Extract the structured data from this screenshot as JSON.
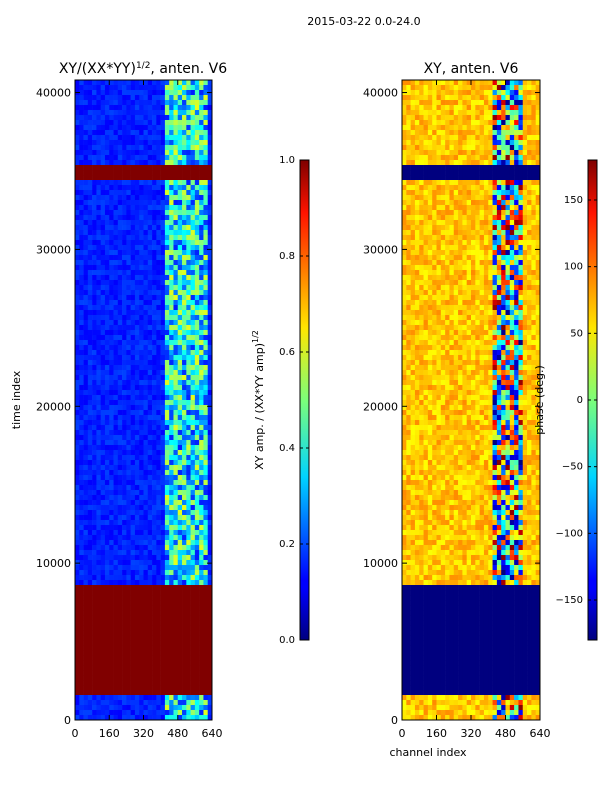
{
  "chart_data": {
    "type": "heatmap",
    "suptitle": "2015-03-22 0.0-24.0",
    "panels": [
      {
        "id": "amp",
        "title": "XY/(XX*YY)^1/2, anten. V6",
        "title_main": "XY/(XX*YY)",
        "title_sup": "1/2",
        "title_tail": ", anten. V6",
        "xlabel": "",
        "ylabel": "time index",
        "xlim": [
          0,
          640
        ],
        "ylim": [
          0,
          40800
        ],
        "xticks": [
          0,
          160,
          320,
          480,
          640
        ],
        "yticks": [
          0,
          10000,
          20000,
          30000,
          40000
        ],
        "colorbar": {
          "label": "XY amp. / (XX*YY amp)^1/2",
          "label_main": "XY amp. / (XX*YY amp)",
          "label_sup": "1/2",
          "vmin": 0.0,
          "vmax": 1.0,
          "ticks": [
            "0.0",
            "0.2",
            "0.4",
            "0.6",
            "0.8",
            "1.0"
          ]
        },
        "flagged_blocks": [
          {
            "y0": 1500,
            "y1": 8500,
            "color": "#800000"
          },
          {
            "y0": 34300,
            "y1": 35500,
            "color": "#800000"
          }
        ]
      },
      {
        "id": "phase",
        "title": "XY, anten. V6",
        "xlabel": "channel index",
        "ylabel": "",
        "xlim": [
          0,
          640
        ],
        "ylim": [
          0,
          40800
        ],
        "xticks": [
          0,
          160,
          320,
          480,
          640
        ],
        "yticks": [
          0,
          10000,
          20000,
          30000,
          40000
        ],
        "colorbar": {
          "label": "phase (deg.)",
          "vmin": -180,
          "vmax": 180,
          "ticks": [
            "−150",
            "−100",
            "−50",
            "0",
            "50",
            "100",
            "150"
          ]
        },
        "flagged_blocks": [
          {
            "y0": 1500,
            "y1": 8500,
            "color": "#00007f"
          },
          {
            "y0": 34300,
            "y1": 35500,
            "color": "#00007f"
          }
        ]
      }
    ]
  }
}
